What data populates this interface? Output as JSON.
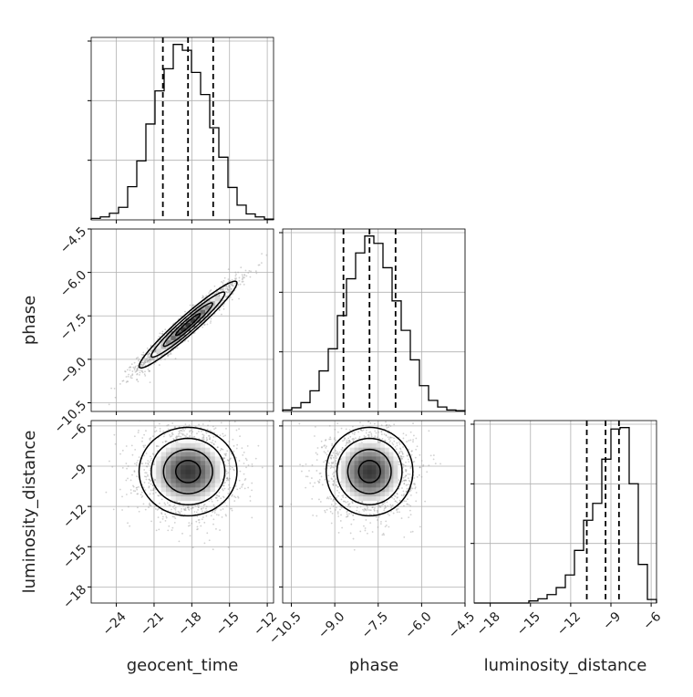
{
  "chart_data": {
    "type": "corner",
    "parameters": [
      "geocent_time",
      "phase",
      "luminosity_distance"
    ],
    "axis_labels": {
      "geocent_time": "geocent_time",
      "phase": "phase",
      "luminosity_distance": "luminosity_distance"
    },
    "ticks": {
      "geocent_time": {
        "values": [
          -24,
          -21,
          -18,
          -15,
          -12
        ],
        "labels": [
          "−24",
          "−21",
          "−18",
          "−15",
          "−12"
        ]
      },
      "phase": {
        "values": [
          -10.5,
          -9.0,
          -7.5,
          -6.0,
          -4.5
        ],
        "labels": [
          "−10.5",
          "−9.0",
          "−7.5",
          "−6.0",
          "−4.5"
        ]
      },
      "luminosity_distance": {
        "values": [
          -18,
          -15,
          -12,
          -9,
          -6
        ],
        "labels": [
          "−18",
          "−15",
          "−12",
          "−9",
          "−6"
        ]
      }
    },
    "ranges": {
      "geocent_time": [
        -26.0,
        -11.5
      ],
      "phase": [
        -10.8,
        -4.5
      ],
      "luminosity_distance": [
        -19.2,
        -5.6
      ]
    },
    "quantiles": {
      "geocent_time": [
        -20.3,
        -18.3,
        -16.3
      ],
      "phase": [
        -8.7,
        -7.8,
        -6.9
      ],
      "luminosity_distance": [
        -10.8,
        -9.4,
        -8.4
      ]
    },
    "histograms": {
      "geocent_time": {
        "edges": [
          -26.0,
          -25.275,
          -24.55,
          -23.825,
          -23.1,
          -22.375,
          -21.65,
          -20.925,
          -20.2,
          -19.475,
          -18.75,
          -18.025,
          -17.3,
          -16.575,
          -15.85,
          -15.125,
          -14.4,
          -13.675,
          -12.95,
          -12.225,
          -11.5
        ],
        "counts": [
          2,
          4,
          9,
          17,
          45,
          80,
          130,
          175,
          205,
          238,
          230,
          200,
          170,
          125,
          85,
          44,
          20,
          8,
          4,
          1
        ]
      },
      "phase": {
        "edges": [
          -10.8,
          -10.485,
          -10.17,
          -9.855,
          -9.54,
          -9.225,
          -8.91,
          -8.595,
          -8.28,
          -7.965,
          -7.65,
          -7.335,
          -7.02,
          -6.705,
          -6.39,
          -6.075,
          -5.76,
          -5.445,
          -5.13,
          -4.815,
          -4.5
        ],
        "counts": [
          2,
          5,
          12,
          28,
          55,
          85,
          130,
          180,
          215,
          238,
          228,
          195,
          150,
          110,
          70,
          35,
          15,
          6,
          2,
          1
        ]
      },
      "luminosity_distance": {
        "edges": [
          -19.2,
          -18.52,
          -17.84,
          -17.16,
          -16.48,
          -15.8,
          -15.12,
          -14.44,
          -13.76,
          -13.08,
          -12.4,
          -11.72,
          -11.04,
          -10.36,
          -9.68,
          -9.0,
          -8.32,
          -7.64,
          -6.96,
          -6.28,
          -5.6
        ],
        "counts": [
          0,
          0,
          0,
          0,
          0,
          0,
          3,
          6,
          12,
          22,
          40,
          75,
          118,
          142,
          205,
          248,
          250,
          170,
          55,
          5
        ]
      }
    },
    "pair_correlations": {
      "phase|geocent_time": 0.96,
      "luminosity_distance|geocent_time": 0.0,
      "luminosity_distance|phase": 0.0
    },
    "pair_spreads": {
      "geocent_time": 1.95,
      "phase": 0.75,
      "luminosity_distance": 1.65
    },
    "contour_levels": [
      0.118,
      0.393,
      0.675,
      0.864
    ],
    "grid": true,
    "colors": {
      "line": "#000000",
      "grid": "#b0b0b0",
      "scatter": "#9a9a9a",
      "quantile": "#000000"
    }
  }
}
